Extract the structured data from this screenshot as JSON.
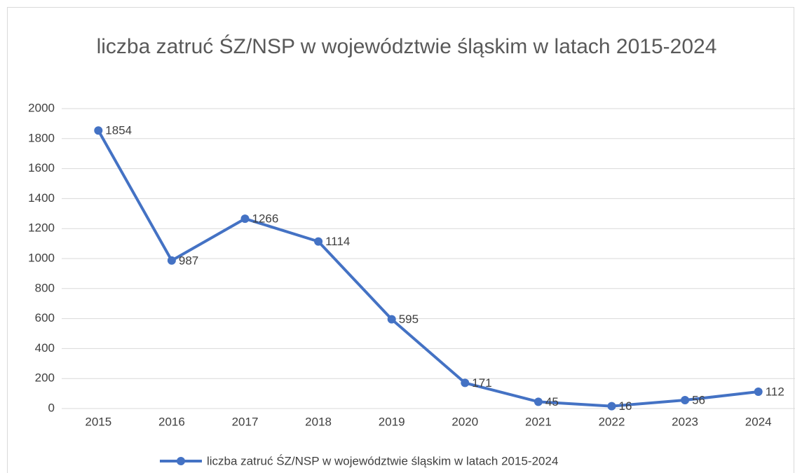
{
  "chart_data": {
    "type": "line",
    "title": "liczba zatruć ŚZ/NSP w województwie śląskim w latach 2015-2024",
    "categories": [
      "2015",
      "2016",
      "2017",
      "2018",
      "2019",
      "2020",
      "2021",
      "2022",
      "2023",
      "2024"
    ],
    "series": [
      {
        "name": "liczba zatruć ŚZ/NSP w województwie śląskim w latach 2015-2024",
        "color": "#4472c4",
        "values": [
          1854,
          987,
          1266,
          1114,
          595,
          171,
          45,
          16,
          56,
          112
        ]
      }
    ],
    "ylim": [
      0,
      2000
    ],
    "yticks": [
      0,
      200,
      400,
      600,
      800,
      1000,
      1200,
      1400,
      1600,
      1800,
      2000
    ],
    "grid": true,
    "data_labels": true,
    "legend": "bottom"
  }
}
